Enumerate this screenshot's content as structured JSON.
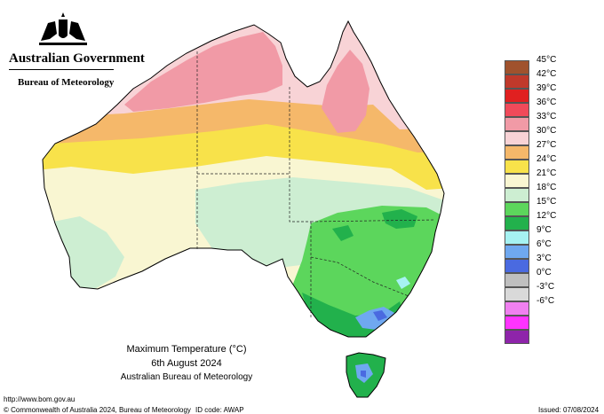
{
  "header": {
    "government": "Australian Government",
    "bureau": "Bureau of Meteorology"
  },
  "map": {
    "title": "Maximum Temperature (°C)",
    "date": "6th August 2024",
    "source": "Australian Bureau of Meteorology"
  },
  "footer": {
    "url": "http://www.bom.gov.au",
    "copyright": "© Commonwealth of Australia 2024, Bureau of Meteorology",
    "id_code": "ID code: AWAP",
    "issued": "Issued: 07/08/2024"
  },
  "legend": {
    "items": [
      {
        "label": "45°C",
        "color": "#a0522d"
      },
      {
        "label": "42°C",
        "color": "#c0392b"
      },
      {
        "label": "39°C",
        "color": "#e02020"
      },
      {
        "label": "36°C",
        "color": "#f04a5a"
      },
      {
        "label": "33°C",
        "color": "#f19aa6"
      },
      {
        "label": "30°C",
        "color": "#f8d3d6"
      },
      {
        "label": "27°C",
        "color": "#f5b86a"
      },
      {
        "label": "24°C",
        "color": "#f8e24a"
      },
      {
        "label": "21°C",
        "color": "#f9f6d2"
      },
      {
        "label": "18°C",
        "color": "#cdeed2"
      },
      {
        "label": "15°C",
        "color": "#5cd65c"
      },
      {
        "label": "12°C",
        "color": "#22b14c"
      },
      {
        "label": "9°C",
        "color": "#a6f2f2"
      },
      {
        "label": "6°C",
        "color": "#6fa8f0"
      },
      {
        "label": "3°C",
        "color": "#4a6ae0"
      },
      {
        "label": "0°C",
        "color": "#bfbfbf"
      },
      {
        "label": "-3°C",
        "color": "#d9d9d9"
      },
      {
        "label": "-6°C",
        "color": "#f080f0"
      },
      {
        "label": "",
        "color": "#ff33ff"
      },
      {
        "label": "",
        "color": "#8e24aa"
      }
    ]
  }
}
